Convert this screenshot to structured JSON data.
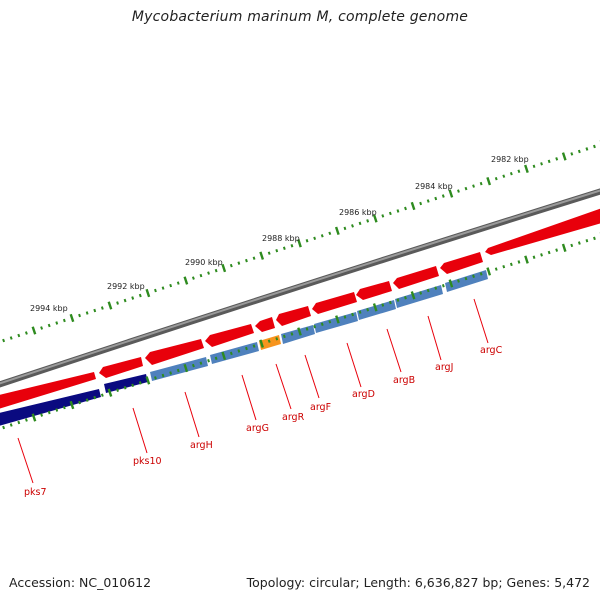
{
  "title": "Mycobacterium marinum M, complete genome",
  "footer": {
    "accession": "Accession: NC_010612",
    "summary": "Topology: circular; Length: 6,636,827 bp; Genes: 5,472"
  },
  "colors": {
    "backbone": "#7a7a7a",
    "forward_gene": "#e8000b",
    "reverse_gene": "#4f81bd",
    "reverse_gene_dark": "#0a0a80",
    "highlight_gene": "#f7941d",
    "scale_ticks": "#2e8b1f",
    "label_lines": "#e8000b"
  },
  "scale_labels": [
    "2994 kbp",
    "2992 kbp",
    "2990 kbp",
    "2988 kbp",
    "2986 kbp",
    "2984 kbp",
    "2982 kbp"
  ],
  "gene_labels": [
    "pks7",
    "pks10",
    "argH",
    "argG",
    "argR",
    "argF",
    "argD",
    "argB",
    "argJ",
    "argC"
  ]
}
